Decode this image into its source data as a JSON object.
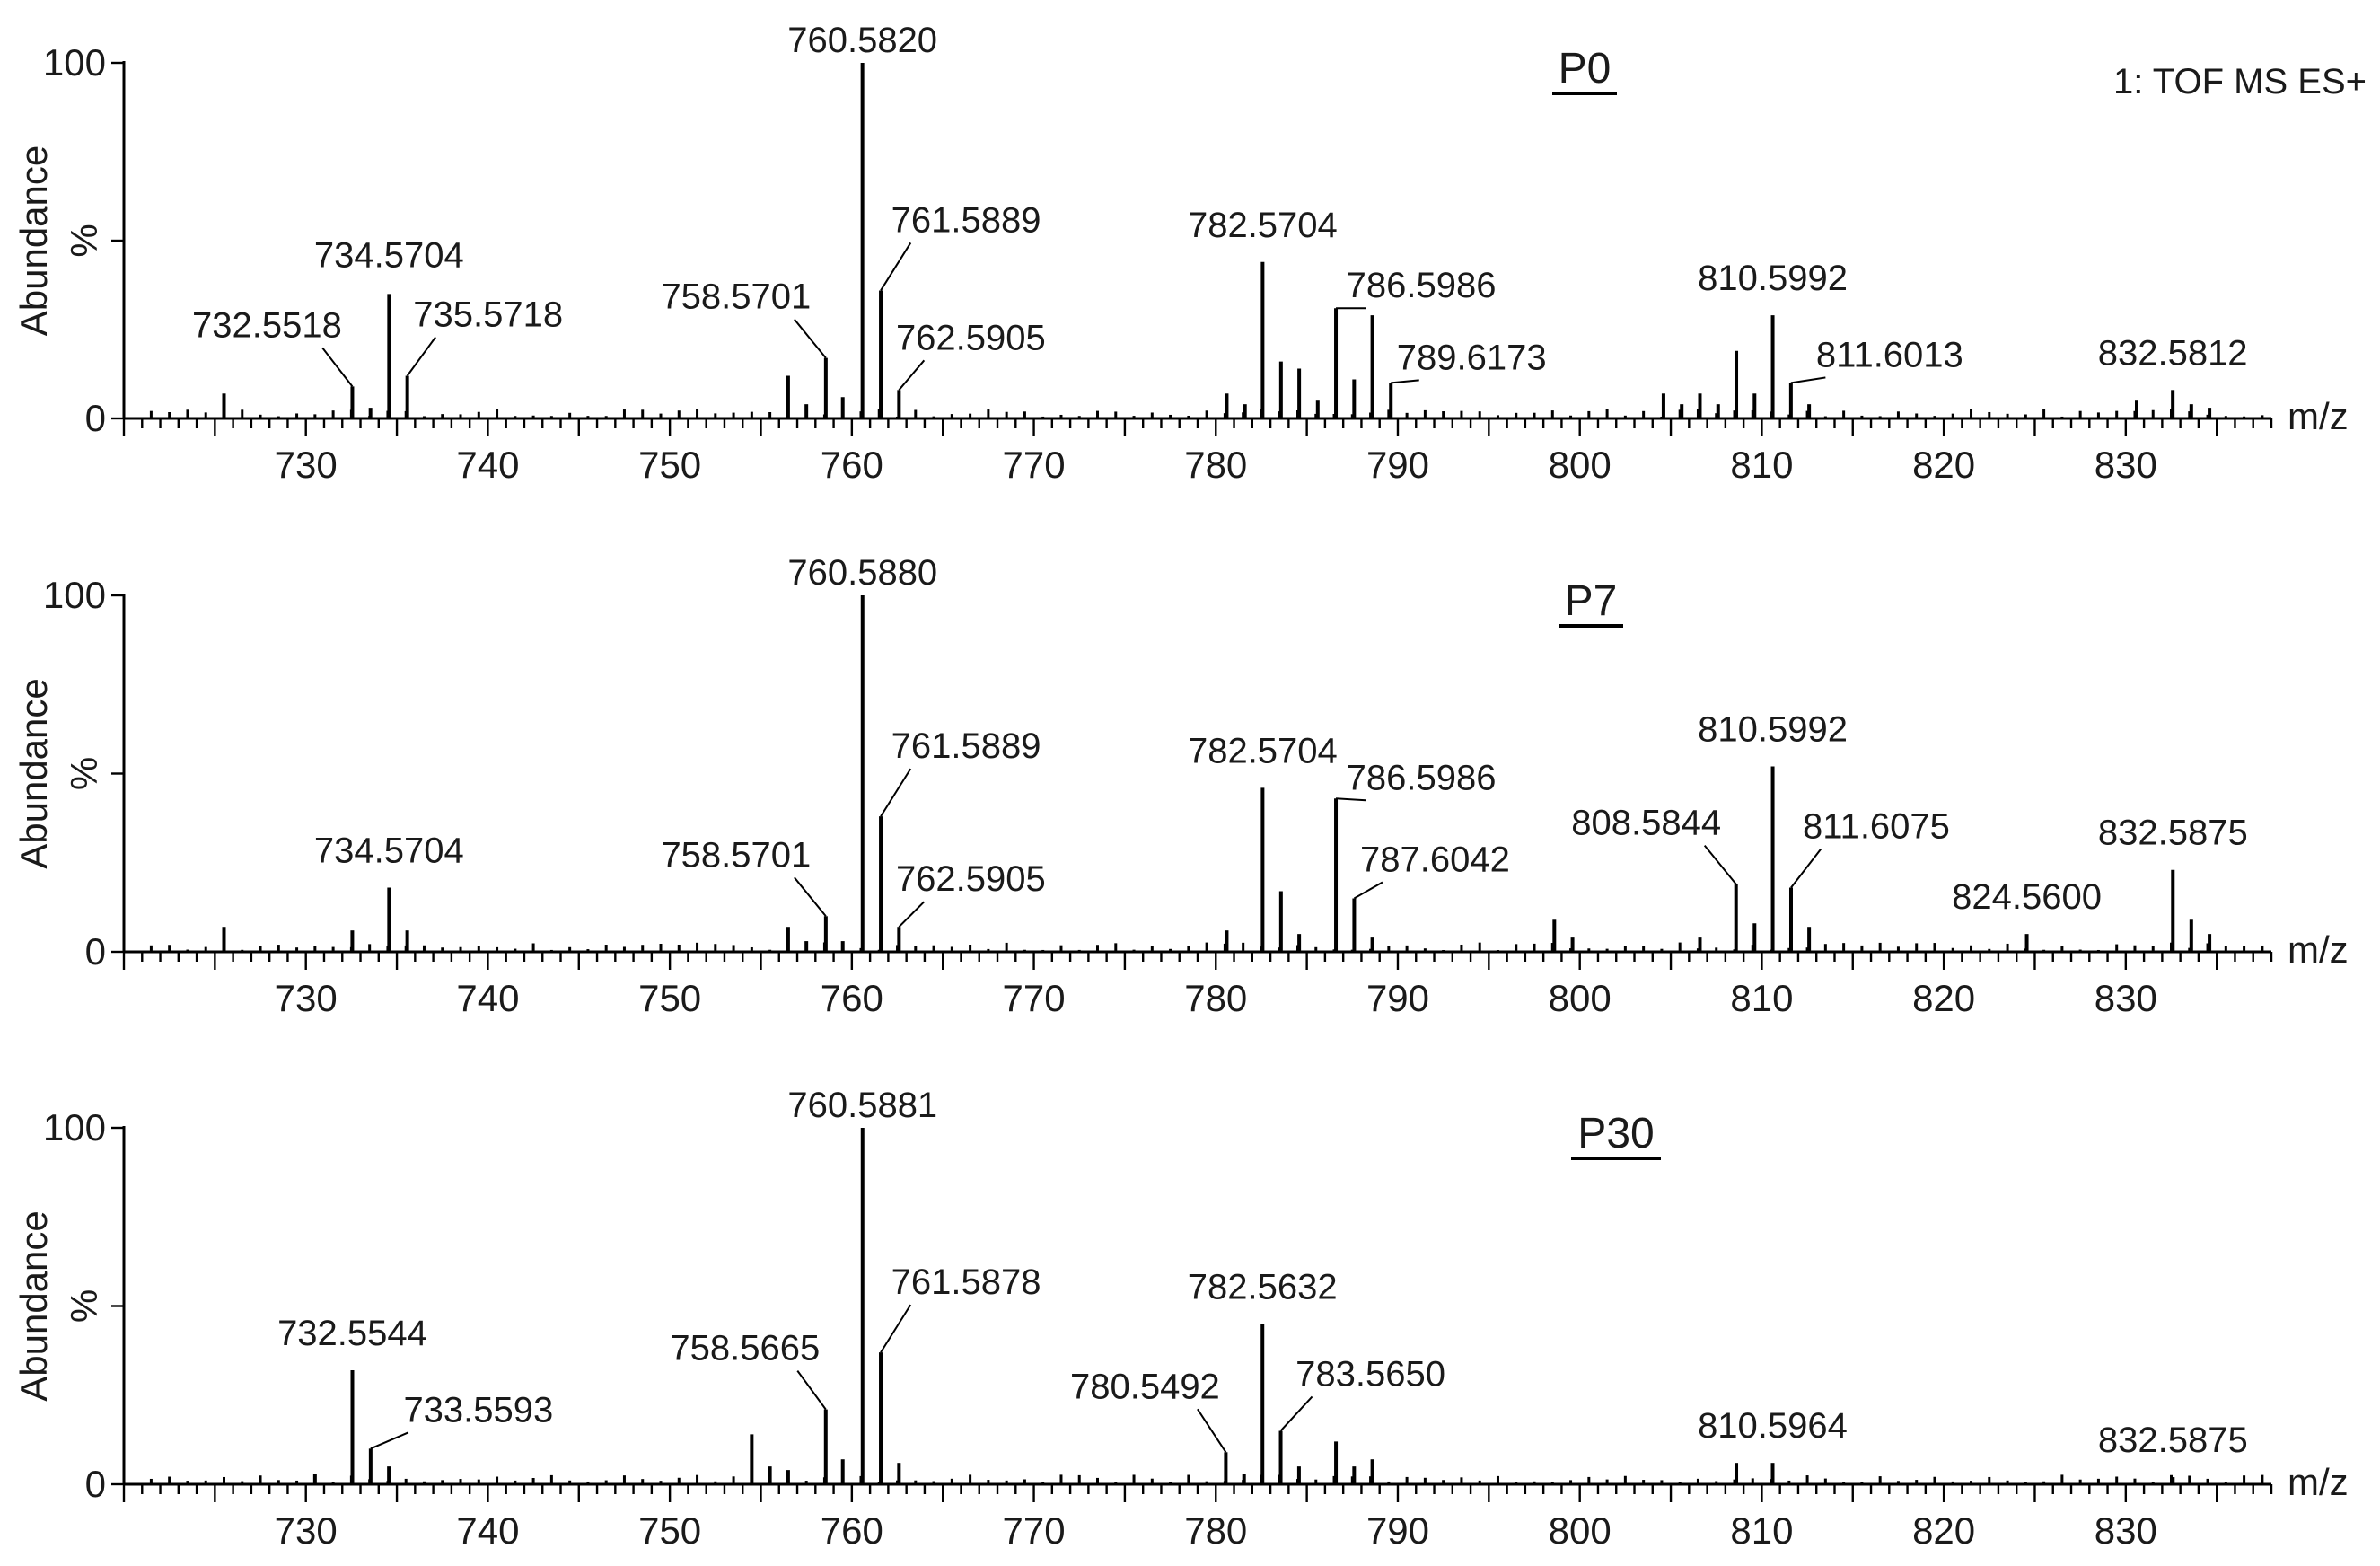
{
  "chart_data": [
    {
      "type": "bar",
      "panel": "P0",
      "title": "P0",
      "subtitle": "1: TOF MS ES+",
      "xlabel": "m/z",
      "ylabel": "Abundance",
      "yunit": "%",
      "xlim": [
        720,
        838
      ],
      "ylim": [
        0,
        100
      ],
      "xticks": [
        730,
        740,
        750,
        760,
        770,
        780,
        790,
        800,
        810,
        820,
        830
      ],
      "yticks": [
        0,
        100
      ],
      "peaks": [
        {
          "mz": 725.5,
          "abundance": 7
        },
        {
          "mz": 732.5518,
          "abundance": 9,
          "label": "732.5518"
        },
        {
          "mz": 733.55,
          "abundance": 3
        },
        {
          "mz": 734.5704,
          "abundance": 35,
          "label": "734.5704"
        },
        {
          "mz": 735.5718,
          "abundance": 12,
          "label": "735.5718"
        },
        {
          "mz": 756.5,
          "abundance": 12
        },
        {
          "mz": 757.5,
          "abundance": 4
        },
        {
          "mz": 758.5701,
          "abundance": 17,
          "label": "758.5701"
        },
        {
          "mz": 759.5,
          "abundance": 6
        },
        {
          "mz": 760.582,
          "abundance": 100,
          "label": "760.5820"
        },
        {
          "mz": 761.5889,
          "abundance": 36,
          "label": "761.5889"
        },
        {
          "mz": 762.5905,
          "abundance": 8,
          "label": "762.5905"
        },
        {
          "mz": 780.6,
          "abundance": 7
        },
        {
          "mz": 781.6,
          "abundance": 4
        },
        {
          "mz": 782.5704,
          "abundance": 44,
          "label": "782.5704"
        },
        {
          "mz": 783.58,
          "abundance": 16
        },
        {
          "mz": 784.58,
          "abundance": 14
        },
        {
          "mz": 785.6,
          "abundance": 5
        },
        {
          "mz": 786.5986,
          "abundance": 31,
          "label": "786.5986"
        },
        {
          "mz": 787.6,
          "abundance": 11
        },
        {
          "mz": 788.6,
          "abundance": 29
        },
        {
          "mz": 789.6173,
          "abundance": 10,
          "label": "789.6173"
        },
        {
          "mz": 804.6,
          "abundance": 7
        },
        {
          "mz": 805.6,
          "abundance": 4
        },
        {
          "mz": 806.6,
          "abundance": 7
        },
        {
          "mz": 807.6,
          "abundance": 4
        },
        {
          "mz": 808.6,
          "abundance": 19
        },
        {
          "mz": 809.6,
          "abundance": 7
        },
        {
          "mz": 810.5992,
          "abundance": 29,
          "label": "810.5992"
        },
        {
          "mz": 811.6013,
          "abundance": 10,
          "label": "811.6013"
        },
        {
          "mz": 812.6,
          "abundance": 4
        },
        {
          "mz": 830.6,
          "abundance": 5
        },
        {
          "mz": 832.5812,
          "abundance": 8,
          "label": "832.5812"
        },
        {
          "mz": 833.6,
          "abundance": 4
        },
        {
          "mz": 834.6,
          "abundance": 3
        }
      ]
    },
    {
      "type": "bar",
      "panel": "P7",
      "title": "P7",
      "xlabel": "m/z",
      "ylabel": "Abundance",
      "yunit": "%",
      "xlim": [
        720,
        838
      ],
      "ylim": [
        0,
        100
      ],
      "xticks": [
        730,
        740,
        750,
        760,
        770,
        780,
        790,
        800,
        810,
        820,
        830
      ],
      "yticks": [
        0,
        100
      ],
      "peaks": [
        {
          "mz": 725.5,
          "abundance": 7
        },
        {
          "mz": 732.55,
          "abundance": 6
        },
        {
          "mz": 734.5704,
          "abundance": 18,
          "label": "734.5704"
        },
        {
          "mz": 735.57,
          "abundance": 6
        },
        {
          "mz": 756.5,
          "abundance": 7
        },
        {
          "mz": 757.5,
          "abundance": 3
        },
        {
          "mz": 758.5701,
          "abundance": 10,
          "label": "758.5701"
        },
        {
          "mz": 759.5,
          "abundance": 3
        },
        {
          "mz": 760.588,
          "abundance": 100,
          "label": "760.5880"
        },
        {
          "mz": 761.5889,
          "abundance": 38,
          "label": "761.5889"
        },
        {
          "mz": 762.5905,
          "abundance": 7,
          "label": "762.5905"
        },
        {
          "mz": 780.6,
          "abundance": 6
        },
        {
          "mz": 782.5704,
          "abundance": 46,
          "label": "782.5704"
        },
        {
          "mz": 783.58,
          "abundance": 17
        },
        {
          "mz": 784.58,
          "abundance": 5
        },
        {
          "mz": 786.5986,
          "abundance": 43,
          "label": "786.5986"
        },
        {
          "mz": 787.6042,
          "abundance": 15,
          "label": "787.6042"
        },
        {
          "mz": 788.6,
          "abundance": 4
        },
        {
          "mz": 798.6,
          "abundance": 9
        },
        {
          "mz": 799.6,
          "abundance": 4
        },
        {
          "mz": 806.6,
          "abundance": 4
        },
        {
          "mz": 808.5844,
          "abundance": 19,
          "label": "808.5844"
        },
        {
          "mz": 809.6,
          "abundance": 8
        },
        {
          "mz": 810.5992,
          "abundance": 52,
          "label": "810.5992"
        },
        {
          "mz": 811.6075,
          "abundance": 18,
          "label": "811.6075"
        },
        {
          "mz": 812.6,
          "abundance": 7
        },
        {
          "mz": 824.56,
          "abundance": 5,
          "label": "824.5600"
        },
        {
          "mz": 832.5875,
          "abundance": 23,
          "label": "832.5875"
        },
        {
          "mz": 833.6,
          "abundance": 9
        },
        {
          "mz": 834.6,
          "abundance": 5
        }
      ]
    },
    {
      "type": "bar",
      "panel": "P30",
      "title": "P30",
      "xlabel": "m/z",
      "ylabel": "Abundance",
      "yunit": "%",
      "xlim": [
        720,
        838
      ],
      "ylim": [
        0,
        100
      ],
      "xticks": [
        730,
        740,
        750,
        760,
        770,
        780,
        790,
        800,
        810,
        820,
        830
      ],
      "yticks": [
        0,
        100
      ],
      "peaks": [
        {
          "mz": 730.5,
          "abundance": 3
        },
        {
          "mz": 732.5544,
          "abundance": 32,
          "label": "732.5544"
        },
        {
          "mz": 733.5593,
          "abundance": 10,
          "label": "733.5593"
        },
        {
          "mz": 734.56,
          "abundance": 5
        },
        {
          "mz": 754.5,
          "abundance": 14
        },
        {
          "mz": 755.5,
          "abundance": 5
        },
        {
          "mz": 756.5,
          "abundance": 4
        },
        {
          "mz": 758.5665,
          "abundance": 21,
          "label": "758.5665"
        },
        {
          "mz": 759.5,
          "abundance": 7
        },
        {
          "mz": 760.5881,
          "abundance": 100,
          "label": "760.5881"
        },
        {
          "mz": 761.5878,
          "abundance": 37,
          "label": "761.5878"
        },
        {
          "mz": 762.59,
          "abundance": 6
        },
        {
          "mz": 780.5492,
          "abundance": 9,
          "label": "780.5492"
        },
        {
          "mz": 781.55,
          "abundance": 3
        },
        {
          "mz": 782.5632,
          "abundance": 45,
          "label": "782.5632"
        },
        {
          "mz": 783.565,
          "abundance": 15,
          "label": "783.5650"
        },
        {
          "mz": 784.57,
          "abundance": 5
        },
        {
          "mz": 786.6,
          "abundance": 12
        },
        {
          "mz": 787.6,
          "abundance": 5
        },
        {
          "mz": 788.6,
          "abundance": 7
        },
        {
          "mz": 808.6,
          "abundance": 6
        },
        {
          "mz": 810.5964,
          "abundance": 6,
          "label": "810.5964"
        },
        {
          "mz": 832.5875,
          "abundance": 2,
          "label": "832.5875"
        }
      ]
    }
  ]
}
